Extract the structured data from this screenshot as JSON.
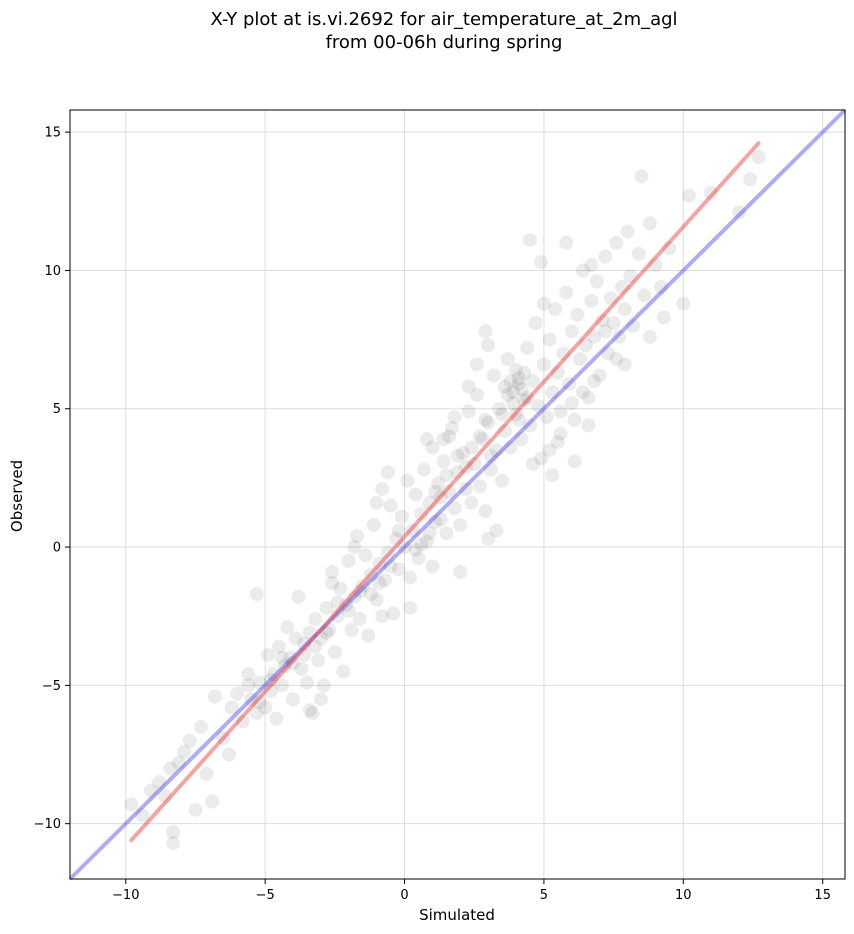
{
  "chart_data": {
    "type": "scatter",
    "title_line1": "X-Y plot at is.vi.2692 for air_temperature_at_2m_agl",
    "title_line2": "from 00-06h during spring",
    "xlabel": "Simulated",
    "ylabel": "Observed",
    "xlim": [
      -12,
      15.8
    ],
    "ylim": [
      -12,
      15.8
    ],
    "xticks": [
      -10,
      -5,
      0,
      5,
      10,
      15
    ],
    "yticks": [
      -10,
      -5,
      0,
      5,
      10,
      15
    ],
    "xtick_labels": [
      "−10",
      "−5",
      "0",
      "5",
      "10",
      "15"
    ],
    "ytick_labels": [
      "−10",
      "−5",
      "0",
      "5",
      "10",
      "15"
    ],
    "grid": true,
    "point_color": "#000000",
    "point_alpha": 0.08,
    "points": [
      [
        -9.8,
        -9.3
      ],
      [
        -9.4,
        -9.7
      ],
      [
        -9.1,
        -8.8
      ],
      [
        -8.8,
        -8.5
      ],
      [
        -8.6,
        -9.0
      ],
      [
        -8.3,
        -10.7
      ],
      [
        -8.3,
        -10.3
      ],
      [
        -8.4,
        -8.0
      ],
      [
        -8.1,
        -7.8
      ],
      [
        -7.9,
        -7.4
      ],
      [
        -7.7,
        -7.0
      ],
      [
        -7.5,
        -9.5
      ],
      [
        -7.3,
        -6.5
      ],
      [
        -7.1,
        -8.2
      ],
      [
        -6.9,
        -9.2
      ],
      [
        -6.8,
        -5.4
      ],
      [
        -6.5,
        -6.9
      ],
      [
        -6.3,
        -7.5
      ],
      [
        -6.2,
        -5.8
      ],
      [
        -6.0,
        -5.3
      ],
      [
        -5.8,
        -6.3
      ],
      [
        -5.6,
        -4.6
      ],
      [
        -5.5,
        -5.5
      ],
      [
        -5.3,
        -6.0
      ],
      [
        -5.3,
        -1.7
      ],
      [
        -5.2,
        -4.9
      ],
      [
        -5.0,
        -5.8
      ],
      [
        -4.9,
        -3.9
      ],
      [
        -4.8,
        -5.2
      ],
      [
        -4.7,
        -4.6
      ],
      [
        -4.6,
        -6.2
      ],
      [
        -4.5,
        -3.6
      ],
      [
        -4.4,
        -5.0
      ],
      [
        -4.3,
        -4.3
      ],
      [
        -4.2,
        -2.9
      ],
      [
        -4.1,
        -4.0
      ],
      [
        -4.0,
        -5.5
      ],
      [
        -3.9,
        -3.3
      ],
      [
        -3.8,
        -1.8
      ],
      [
        -3.7,
        -4.4
      ],
      [
        -3.6,
        -3.5
      ],
      [
        -3.5,
        -4.9
      ],
      [
        -3.4,
        -3.1
      ],
      [
        -3.3,
        -6.0
      ],
      [
        -3.2,
        -2.6
      ],
      [
        -3.1,
        -4.1
      ],
      [
        -3.0,
        -3.3
      ],
      [
        -2.9,
        -5.0
      ],
      [
        -2.8,
        -2.2
      ],
      [
        -2.7,
        -3.0
      ],
      [
        -2.6,
        -1.3
      ],
      [
        -2.5,
        -3.8
      ],
      [
        -2.4,
        -2.5
      ],
      [
        -2.3,
        -1.5
      ],
      [
        -2.2,
        -4.5
      ],
      [
        -2.1,
        -2.1
      ],
      [
        -2.0,
        -0.5
      ],
      [
        -1.9,
        -3.0
      ],
      [
        -1.8,
        -1.8
      ],
      [
        -1.7,
        0.4
      ],
      [
        -1.6,
        -2.6
      ],
      [
        -1.5,
        -1.4
      ],
      [
        -1.4,
        -0.3
      ],
      [
        -1.3,
        -3.2
      ],
      [
        -1.2,
        -1.0
      ],
      [
        -1.1,
        0.8
      ],
      [
        -1.0,
        -1.9
      ],
      [
        -0.9,
        -0.6
      ],
      [
        -0.8,
        2.1
      ],
      [
        -0.7,
        -1.2
      ],
      [
        -0.6,
        -0.2
      ],
      [
        -0.5,
        1.5
      ],
      [
        -0.4,
        -2.4
      ],
      [
        -0.3,
        0.3
      ],
      [
        -0.2,
        -0.8
      ],
      [
        -0.1,
        1.1
      ],
      [
        0.0,
        0.0
      ],
      [
        0.1,
        2.4
      ],
      [
        0.2,
        -1.1
      ],
      [
        0.3,
        0.6
      ],
      [
        0.4,
        1.9
      ],
      [
        0.5,
        -0.4
      ],
      [
        0.6,
        1.2
      ],
      [
        0.7,
        2.8
      ],
      [
        0.8,
        0.2
      ],
      [
        0.9,
        1.6
      ],
      [
        1.0,
        3.6
      ],
      [
        1.1,
        0.9
      ],
      [
        1.2,
        2.3
      ],
      [
        1.3,
        1.0
      ],
      [
        1.4,
        3.1
      ],
      [
        1.5,
        0.5
      ],
      [
        1.6,
        2.0
      ],
      [
        1.7,
        4.3
      ],
      [
        1.8,
        1.4
      ],
      [
        1.9,
        2.7
      ],
      [
        2.0,
        0.8
      ],
      [
        2.1,
        3.4
      ],
      [
        2.2,
        2.1
      ],
      [
        2.3,
        4.9
      ],
      [
        2.4,
        1.6
      ],
      [
        2.5,
        3.0
      ],
      [
        2.6,
        5.5
      ],
      [
        2.7,
        2.2
      ],
      [
        2.8,
        3.9
      ],
      [
        2.9,
        1.3
      ],
      [
        3.0,
        4.5
      ],
      [
        3.1,
        2.8
      ],
      [
        3.2,
        6.2
      ],
      [
        3.3,
        3.5
      ],
      [
        3.4,
        5.0
      ],
      [
        3.5,
        2.4
      ],
      [
        3.6,
        4.2
      ],
      [
        3.7,
        6.8
      ],
      [
        3.8,
        3.6
      ],
      [
        3.9,
        5.6
      ],
      [
        4.0,
        4.8
      ],
      [
        4.1,
        6.1
      ],
      [
        4.2,
        3.9
      ],
      [
        4.3,
        5.3
      ],
      [
        4.4,
        7.2
      ],
      [
        4.5,
        4.4
      ],
      [
        4.6,
        6.0
      ],
      [
        4.7,
        8.1
      ],
      [
        4.8,
        5.1
      ],
      [
        4.9,
        3.2
      ],
      [
        5.0,
        6.6
      ],
      [
        5.1,
        4.7
      ],
      [
        5.2,
        7.5
      ],
      [
        5.3,
        5.6
      ],
      [
        5.4,
        8.6
      ],
      [
        5.5,
        6.3
      ],
      [
        5.6,
        4.1
      ],
      [
        5.7,
        7.0
      ],
      [
        5.8,
        9.2
      ],
      [
        5.9,
        5.9
      ],
      [
        6.0,
        7.8
      ],
      [
        6.1,
        4.6
      ],
      [
        6.2,
        8.4
      ],
      [
        6.3,
        6.8
      ],
      [
        6.4,
        10.0
      ],
      [
        6.5,
        7.3
      ],
      [
        6.6,
        5.4
      ],
      [
        6.7,
        8.9
      ],
      [
        6.8,
        7.6
      ],
      [
        6.9,
        9.6
      ],
      [
        7.0,
        6.2
      ],
      [
        7.1,
        8.2
      ],
      [
        7.2,
        10.5
      ],
      [
        7.3,
        7.0
      ],
      [
        7.4,
        9.0
      ],
      [
        7.5,
        8.1
      ],
      [
        7.6,
        11.0
      ],
      [
        7.7,
        7.6
      ],
      [
        7.8,
        9.4
      ],
      [
        7.9,
        8.6
      ],
      [
        8.0,
        11.4
      ],
      [
        8.1,
        9.8
      ],
      [
        8.2,
        8.0
      ],
      [
        8.4,
        10.6
      ],
      [
        8.5,
        13.4
      ],
      [
        8.6,
        9.1
      ],
      [
        8.8,
        11.7
      ],
      [
        9.0,
        10.2
      ],
      [
        9.2,
        9.4
      ],
      [
        9.5,
        10.8
      ],
      [
        10.0,
        8.8
      ],
      [
        10.2,
        12.7
      ],
      [
        11.0,
        12.8
      ],
      [
        12.0,
        12.1
      ],
      [
        12.4,
        13.3
      ],
      [
        12.7,
        14.1
      ],
      [
        4.1,
        5.9
      ],
      [
        4.0,
        6.4
      ],
      [
        3.9,
        5.2
      ],
      [
        4.2,
        5.7
      ],
      [
        3.8,
        6.0
      ],
      [
        4.3,
        6.3
      ],
      [
        3.7,
        5.5
      ],
      [
        4.4,
        5.4
      ],
      [
        3.5,
        4.8
      ],
      [
        3.6,
        5.8
      ],
      [
        4.1,
        4.6
      ],
      [
        2.7,
        4.0
      ],
      [
        2.9,
        4.6
      ],
      [
        3.1,
        3.3
      ],
      [
        2.4,
        3.6
      ],
      [
        2.2,
        2.9
      ],
      [
        1.9,
        3.3
      ],
      [
        1.5,
        2.6
      ],
      [
        1.3,
        1.8
      ],
      [
        1.1,
        2.0
      ],
      [
        0.9,
        0.5
      ],
      [
        0.6,
        0.1
      ],
      [
        0.4,
        -0.1
      ],
      [
        -0.2,
        0.6
      ],
      [
        -0.5,
        -0.7
      ],
      [
        -0.9,
        -1.3
      ],
      [
        -1.2,
        -1.7
      ],
      [
        -1.6,
        -1.6
      ],
      [
        -2.0,
        -2.3
      ],
      [
        -2.4,
        -2.0
      ],
      [
        -2.8,
        -3.1
      ],
      [
        -3.2,
        -3.6
      ],
      [
        -3.6,
        -3.9
      ],
      [
        -4.0,
        -4.2
      ],
      [
        -4.4,
        -4.0
      ],
      [
        -4.8,
        -4.8
      ],
      [
        -5.2,
        -5.6
      ],
      [
        -5.6,
        -5.0
      ],
      [
        5.2,
        3.5
      ],
      [
        5.6,
        4.9
      ],
      [
        6.0,
        5.2
      ],
      [
        6.4,
        5.6
      ],
      [
        6.8,
        6.0
      ],
      [
        7.2,
        7.8
      ],
      [
        7.6,
        6.8
      ],
      [
        5.0,
        8.8
      ],
      [
        4.5,
        11.1
      ],
      [
        4.9,
        10.3
      ],
      [
        5.8,
        11.0
      ],
      [
        6.7,
        10.2
      ],
      [
        3.0,
        0.3
      ],
      [
        3.3,
        0.6
      ],
      [
        2.0,
        -0.9
      ],
      [
        1.0,
        -0.7
      ],
      [
        0.2,
        -2.2
      ],
      [
        -0.8,
        -2.5
      ],
      [
        -3.0,
        -5.5
      ],
      [
        -3.4,
        -5.9
      ],
      [
        4.6,
        3.0
      ],
      [
        5.3,
        2.6
      ],
      [
        5.5,
        3.8
      ],
      [
        6.1,
        3.1
      ],
      [
        2.6,
        6.6
      ],
      [
        3.0,
        7.3
      ],
      [
        2.3,
        5.8
      ],
      [
        1.8,
        4.7
      ],
      [
        1.4,
        3.9
      ],
      [
        -2.6,
        -0.9
      ],
      [
        -1.8,
        0.0
      ],
      [
        -1.0,
        1.6
      ],
      [
        -0.6,
        2.7
      ],
      [
        0.8,
        3.9
      ],
      [
        1.6,
        4.0
      ],
      [
        2.9,
        7.8
      ],
      [
        8.8,
        7.6
      ],
      [
        9.3,
        8.3
      ],
      [
        7.9,
        6.6
      ],
      [
        6.6,
        4.4
      ]
    ],
    "fit_line": {
      "name": "",
      "color": "#e8353a",
      "x": [
        -9.8,
        12.7
      ],
      "y": [
        -10.6,
        14.6
      ]
    },
    "identity_line": {
      "name": "",
      "color": "#1515e0",
      "x": [
        -12,
        15.8
      ],
      "y": [
        -12,
        15.8
      ]
    }
  }
}
